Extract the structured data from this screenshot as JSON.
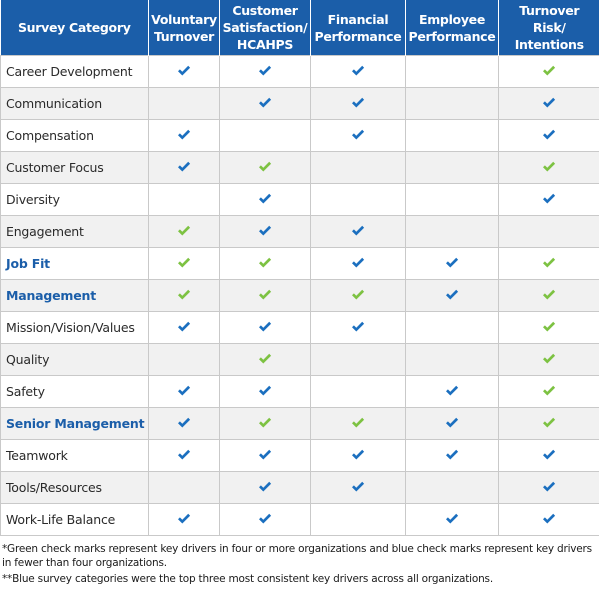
{
  "colors": {
    "header_bg": "#1b5ea9",
    "blue_check": "#1b6fbf",
    "green_check": "#7dc242",
    "highlight_text": "#1b5ea9"
  },
  "header": {
    "category": "Survey Category",
    "columns": [
      [
        "Voluntary",
        "Turnover"
      ],
      [
        "Customer",
        "Satisfaction/",
        "HCAHPS"
      ],
      [
        "Financial",
        "Performance"
      ],
      [
        "Employee",
        "Performance"
      ],
      [
        "Turnover Risk/",
        "Intentions"
      ]
    ]
  },
  "rows": [
    {
      "category": "Career Development",
      "highlight": false,
      "marks": [
        "blue",
        "blue",
        "blue",
        "",
        "green"
      ]
    },
    {
      "category": "Communication",
      "highlight": false,
      "marks": [
        "",
        "blue",
        "blue",
        "",
        "blue"
      ]
    },
    {
      "category": "Compensation",
      "highlight": false,
      "marks": [
        "blue",
        "",
        "blue",
        "",
        "blue"
      ]
    },
    {
      "category": "Customer Focus",
      "highlight": false,
      "marks": [
        "blue",
        "green",
        "",
        "",
        "green"
      ]
    },
    {
      "category": "Diversity",
      "highlight": false,
      "marks": [
        "",
        "blue",
        "",
        "",
        "blue"
      ]
    },
    {
      "category": "Engagement",
      "highlight": false,
      "marks": [
        "green",
        "blue",
        "blue",
        "",
        ""
      ]
    },
    {
      "category": "Job Fit",
      "highlight": true,
      "marks": [
        "green",
        "green",
        "blue",
        "blue",
        "green"
      ]
    },
    {
      "category": "Management",
      "highlight": true,
      "marks": [
        "green",
        "green",
        "green",
        "blue",
        "green"
      ]
    },
    {
      "category": "Mission/Vision/Values",
      "highlight": false,
      "marks": [
        "blue",
        "blue",
        "blue",
        "",
        "green"
      ]
    },
    {
      "category": "Quality",
      "highlight": false,
      "marks": [
        "",
        "green",
        "",
        "",
        "green"
      ]
    },
    {
      "category": "Safety",
      "highlight": false,
      "marks": [
        "blue",
        "blue",
        "",
        "blue",
        "green"
      ]
    },
    {
      "category": "Senior Management",
      "highlight": true,
      "marks": [
        "blue",
        "green",
        "green",
        "blue",
        "green"
      ]
    },
    {
      "category": "Teamwork",
      "highlight": false,
      "marks": [
        "blue",
        "blue",
        "blue",
        "blue",
        "blue"
      ]
    },
    {
      "category": "Tools/Resources",
      "highlight": false,
      "marks": [
        "",
        "blue",
        "blue",
        "",
        "blue"
      ]
    },
    {
      "category": "Work-Life Balance",
      "highlight": false,
      "marks": [
        "blue",
        "blue",
        "",
        "blue",
        "blue"
      ]
    }
  ],
  "footnotes": [
    "*Green check marks represent key drivers in four or more organizations and blue check marks represent key drivers in fewer than four organizations.",
    "**Blue survey categories were the top three most consistent key drivers across all organizations."
  ]
}
